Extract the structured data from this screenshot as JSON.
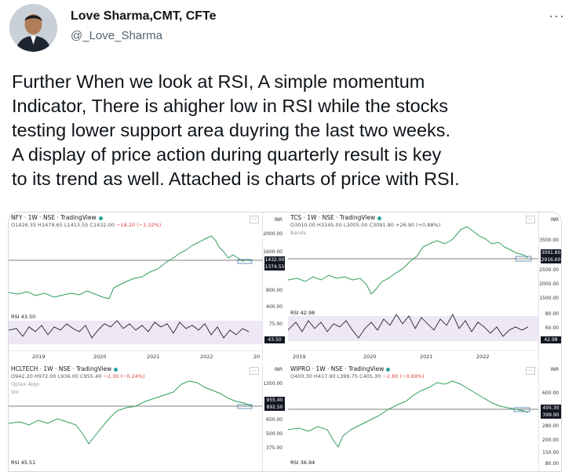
{
  "author": {
    "name": "Love Sharma,CMT, CFTe",
    "handle": "@_Love_Sharma"
  },
  "more_icon": "···",
  "tweet_lines": [
    "Further When we look at RSI, A simple momentum",
    "Indicator, There is ahigher low in RSI while the stocks",
    "testing lower support area duyring the last two weeks.",
    "A display of price action during quarterly result is key",
    "to its trend as well. Attached is charts of price with RSI."
  ],
  "charts": {
    "infy": {
      "header": "NFY · 1W · NSE · TradingView",
      "ohlc": "O1426.35 H1479.65 L1413.55 C1432.00",
      "change": "−19.20 (−1.32%)",
      "currency": "INR",
      "axis": [
        "2000.00",
        "1600.00",
        "800.00",
        "400.00"
      ],
      "tag1": "1432.00",
      "tag2": "1374.55",
      "rsi_label": "RSI 43.50",
      "rsi_axis": "75.00",
      "rsi_tag": "43.50",
      "years": [
        "2019",
        "2020",
        "2021",
        "2022",
        "20"
      ]
    },
    "tcs": {
      "header": "TCS · 1W · NSE · TradingView",
      "ohlc": "O3010.00 H3145.00 L3005.00 C3091.80",
      "change": "+26.90 (+0.88%)",
      "sub": "Bands",
      "currency": "INR",
      "axis": [
        "3500.00",
        "2500.00",
        "2000.00",
        "1500.00"
      ],
      "tag1": "3091.80",
      "tag2": "2916.60",
      "rsi_label": "RSI 42.98",
      "rsi_axis": [
        "80.00",
        "60.00"
      ],
      "rsi_tag": "42.98",
      "years": [
        "2019",
        "2020",
        "2021",
        "2022"
      ]
    },
    "hcl": {
      "header": "HCLTECH · 1W · NSE · TradingView",
      "ohlc": "O942.20 H972.00 L936.00 C955.40",
      "change": "−2.30 (−0.24%)",
      "sub": "Optex Algo",
      "sub2": "Vol",
      "currency": "INR",
      "axis": [
        "1350.00",
        "650.00",
        "500.00",
        "375.00"
      ],
      "tag1": "955.40",
      "tag2": "892.50",
      "rsi_label": "RSI 45.51"
    },
    "wipro": {
      "header": "WIPRO · 1W · NSE · TradingView",
      "ohlc": "O400.30 H417.90 L399.75 C405.30",
      "change": "−2.80 (−0.69%)",
      "currency": "INR",
      "axis": [
        "600.00",
        "280.00",
        "200.00",
        "150.00"
      ],
      "tag1": "405.30",
      "tag2": "399.90",
      "rsi_label": "RSI 36.94",
      "rsi_axis": "80.00"
    }
  }
}
